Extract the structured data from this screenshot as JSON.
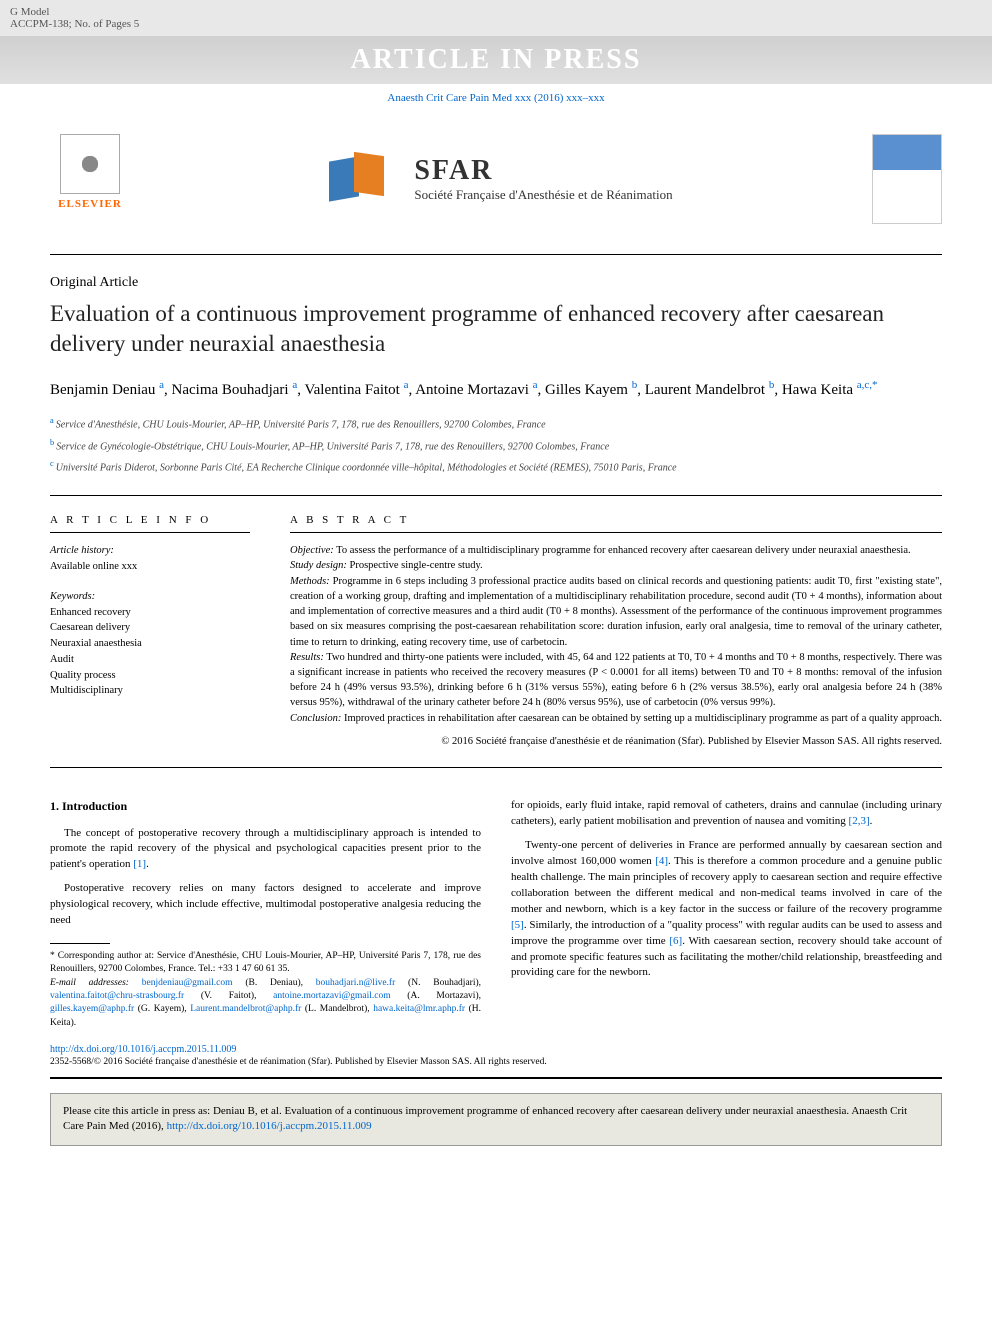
{
  "header": {
    "gmodel": "G Model",
    "accpm": "ACCPM-138; No. of Pages 5",
    "aip": "ARTICLE IN PRESS",
    "journal_ref": "Anaesth Crit Care Pain Med xxx (2016) xxx–xxx"
  },
  "logos": {
    "elsevier": "ELSEVIER",
    "sfar_title": "SFAR",
    "sfar_sub": "Société Française d'Anesthésie et de Réanimation"
  },
  "article": {
    "type": "Original Article",
    "title": "Evaluation of a continuous improvement programme of enhanced recovery after caesarean delivery under neuraxial anaesthesia",
    "authors_html": "Benjamin Deniau|a|, Nacima Bouhadjari|a|, Valentina Faitot|a|, Antoine Mortazavi|a|, Gilles Kayem|b|, Laurent Mandelbrot|b|, Hawa Keita|a,c,*|",
    "authors": [
      {
        "name": "Benjamin Deniau",
        "sup": "a"
      },
      {
        "name": "Nacima Bouhadjari",
        "sup": "a"
      },
      {
        "name": "Valentina Faitot",
        "sup": "a"
      },
      {
        "name": "Antoine Mortazavi",
        "sup": "a"
      },
      {
        "name": "Gilles Kayem",
        "sup": "b"
      },
      {
        "name": "Laurent Mandelbrot",
        "sup": "b"
      },
      {
        "name": "Hawa Keita",
        "sup": "a,c,*"
      }
    ],
    "affiliations": [
      {
        "sup": "a",
        "text": "Service d'Anesthésie, CHU Louis-Mourier, AP–HP, Université Paris 7, 178, rue des Renouillers, 92700 Colombes, France"
      },
      {
        "sup": "b",
        "text": "Service de Gynécologie-Obstétrique, CHU Louis-Mourier, AP–HP, Université Paris 7, 178, rue des Renouillers, 92700 Colombes, France"
      },
      {
        "sup": "c",
        "text": "Université Paris Diderot, Sorbonne Paris Cité, EA Recherche Clinique coordonnée ville–hôpital, Méthodologies et Société (REMES), 75010 Paris, France"
      }
    ]
  },
  "info": {
    "heading": "A R T I C L E   I N F O",
    "history_label": "Article history:",
    "history_value": "Available online xxx",
    "keywords_label": "Keywords:",
    "keywords": [
      "Enhanced recovery",
      "Caesarean delivery",
      "Neuraxial anaesthesia",
      "Audit",
      "Quality process",
      "Multidisciplinary"
    ]
  },
  "abstract": {
    "heading": "A B S T R A C T",
    "objective_label": "Objective:",
    "objective": "To assess the performance of a multidisciplinary programme for enhanced recovery after caesarean delivery under neuraxial anaesthesia.",
    "design_label": "Study design:",
    "design": "Prospective single-centre study.",
    "methods_label": "Methods:",
    "methods": "Programme in 6 steps including 3 professional practice audits based on clinical records and questioning patients: audit T0, first \"existing state\", creation of a working group, drafting and implementation of a multidisciplinary rehabilitation procedure, second audit (T0 + 4 months), information about and implementation of corrective measures and a third audit (T0 + 8 months). Assessment of the performance of the continuous improvement programmes based on six measures comprising the post-caesarean rehabilitation score: duration infusion, early oral analgesia, time to removal of the urinary catheter, time to return to drinking, eating recovery time, use of carbetocin.",
    "results_label": "Results:",
    "results": "Two hundred and thirty-one patients were included, with 45, 64 and 122 patients at T0, T0 + 4 months and T0 + 8 months, respectively. There was a significant increase in patients who received the recovery measures (P < 0.0001 for all items) between T0 and T0 + 8 months: removal of the infusion before 24 h (49% versus 93.5%), drinking before 6 h (31% versus 55%), eating before 6 h (2% versus 38.5%), early oral analgesia before 24 h (38% versus 95%), withdrawal of the urinary catheter before 24 h (80% versus 95%), use of carbetocin (0% versus 99%).",
    "conclusion_label": "Conclusion:",
    "conclusion": "Improved practices in rehabilitation after caesarean can be obtained by setting up a multidisciplinary programme as part of a quality approach.",
    "copyright": "© 2016 Société française d'anesthésie et de réanimation (Sfar). Published by Elsevier Masson SAS. All rights reserved."
  },
  "body": {
    "section1_heading": "1. Introduction",
    "p1": "The concept of postoperative recovery through a multidisciplinary approach is intended to promote the rapid recovery of the physical and psychological capacities present prior to the patient's operation ",
    "p1_ref": "[1]",
    "p1_end": ".",
    "p2": "Postoperative recovery relies on many factors designed to accelerate and improve physiological recovery, which include effective, multimodal postoperative analgesia reducing the need",
    "p3a": "for opioids, early fluid intake, rapid removal of catheters, drains and cannulae (including urinary catheters), early patient mobilisation and prevention of nausea and vomiting ",
    "p3_ref": "[2,3]",
    "p3_end": ".",
    "p4a": "Twenty-one percent of deliveries in France are performed annually by caesarean section and involve almost 160,000 women ",
    "p4_ref1": "[4]",
    "p4b": ". This is therefore a common procedure and a genuine public health challenge. The main principles of recovery apply to caesarean section and require effective collaboration between the different medical and non-medical teams involved in care of the mother and newborn, which is a key factor in the success or failure of the recovery programme ",
    "p4_ref2": "[5]",
    "p4c": ". Similarly, the introduction of a \"quality process\" with regular audits can be used to assess and improve the programme over time ",
    "p4_ref3": "[6]",
    "p4d": ". With caesarean section, recovery should take account of and promote specific features such as facilitating the mother/child relationship, breastfeeding and providing care for the newborn."
  },
  "footnotes": {
    "corresponding": "* Corresponding author at: Service d'Anesthésie, CHU Louis-Mourier, AP–HP, Université Paris 7, 178, rue des Renouillers, 92700 Colombes, France. Tel.: +33 1 47 60 61 35.",
    "email_label": "E-mail addresses:",
    "emails": [
      {
        "addr": "benjdeniau@gmail.com",
        "who": "(B. Deniau),"
      },
      {
        "addr": "bouhadjari.n@live.fr",
        "who": "(N. Bouhadjari),"
      },
      {
        "addr": "valentina.faitot@chru-strasbourg.fr",
        "who": "(V. Faitot),"
      },
      {
        "addr": "antoine.mortazavi@gmail.com",
        "who": "(A. Mortazavi),"
      },
      {
        "addr": "gilles.kayem@aphp.fr",
        "who": "(G. Kayem),"
      },
      {
        "addr": "Laurent.mandelbrot@aphp.fr",
        "who": "(L. Mandelbrot),"
      },
      {
        "addr": "hawa.keita@lmr.aphp.fr",
        "who": "(H. Keita)."
      }
    ]
  },
  "footer": {
    "doi": "http://dx.doi.org/10.1016/j.accpm.2015.11.009",
    "issn": "2352-5568/© 2016 Société française d'anesthésie et de réanimation (Sfar). Published by Elsevier Masson SAS. All rights reserved.",
    "cite_text": "Please cite this article in press as: Deniau B, et al. Evaluation of a continuous improvement programme of enhanced recovery after caesarean delivery under neuraxial anaesthesia. Anaesth Crit Care Pain Med (2016), ",
    "cite_link": "http://dx.doi.org/10.1016/j.accpm.2015.11.009"
  },
  "colors": {
    "link": "#0066cc",
    "elsevier_orange": "#ff6600",
    "sfar_blue": "#3a7ab8",
    "sfar_orange": "#e67e22",
    "gray_bg": "#e8e8e8",
    "cite_bg": "#e8e8e0"
  }
}
